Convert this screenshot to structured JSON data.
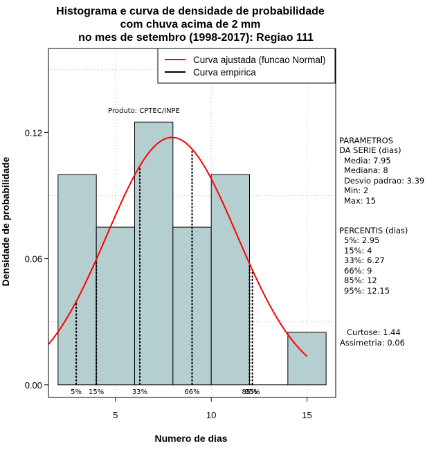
{
  "chart_data": {
    "type": "histogram",
    "title_lines": [
      "Histograma e curva de densidade de probabilidade",
      "com chuva acima de 2 mm",
      "no mes de setembro (1998-2017): Regiao 111"
    ],
    "xlabel": "Numero de dias",
    "ylabel": "Densidade de probabilidade",
    "xlim": [
      1.5,
      16.5
    ],
    "ylim": [
      -0.006,
      0.16
    ],
    "x_ticks": [
      5,
      10,
      15
    ],
    "y_ticks": [
      0.0,
      0.06,
      0.12
    ],
    "x_tick_labels": [
      "5",
      "10",
      "15"
    ],
    "y_tick_labels": [
      "0.00",
      "0.06",
      "0.12"
    ],
    "bins": [
      {
        "start": 2,
        "end": 4,
        "density": 0.1
      },
      {
        "start": 4,
        "end": 6,
        "density": 0.075
      },
      {
        "start": 6,
        "end": 8,
        "density": 0.125
      },
      {
        "start": 8,
        "end": 10,
        "density": 0.075
      },
      {
        "start": 10,
        "end": 12,
        "density": 0.1
      },
      {
        "start": 12,
        "end": 14,
        "density": 0.0
      },
      {
        "start": 14,
        "end": 16,
        "density": 0.025
      }
    ],
    "fitted_normal": {
      "mean": 7.95,
      "sd": 3.39,
      "x_from": 1.5,
      "x_to": 15
    },
    "percentile_markers": [
      {
        "x": 2.95,
        "label": "5%"
      },
      {
        "x": 4,
        "label": "15%"
      },
      {
        "x": 6.27,
        "label": "33%"
      },
      {
        "x": 9,
        "label": "66%"
      },
      {
        "x": 12,
        "label": "85%"
      },
      {
        "x": 12.15,
        "label": "95%"
      }
    ],
    "legend": [
      {
        "label": "Curva ajustada (funcao Normal)",
        "color": "#ff0000"
      },
      {
        "label": "Curva empirica",
        "color": "#000000"
      }
    ],
    "annotation": "Produto: CPTEC/INPE",
    "colors": {
      "bar_fill": "#b5cecf",
      "bar_stroke": "#000000",
      "curve": "#ff0000",
      "grid": "#bbbbbb"
    }
  },
  "side_panel": {
    "params_header": [
      "PARAMETROS",
      "DA SERIE (dias)"
    ],
    "params": [
      "Media: 7.95",
      "Mediana: 8",
      "Desvio padrao: 3.39",
      "Min: 2",
      "Max: 15"
    ],
    "percentis_header": "PERCENTIS (dias)",
    "percentis": [
      "5%: 2.95",
      "15%: 4",
      "33%: 6.27",
      "66%: 9",
      "85%: 12",
      "95%: 12.15"
    ],
    "curtose": "Curtose: 1.44",
    "assimetria": "Assimetria: 0.06"
  }
}
